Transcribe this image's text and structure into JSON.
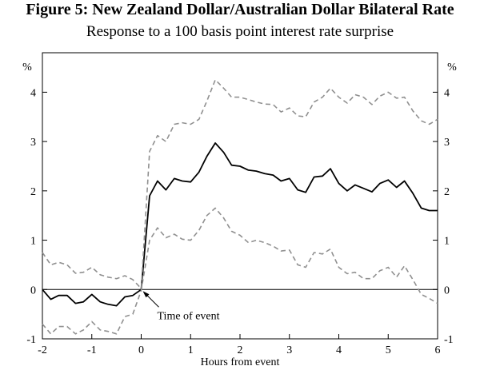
{
  "chart_data": {
    "type": "line",
    "title": "Figure 5: New Zealand Dollar/Australian Dollar Bilateral Rate",
    "subtitle": "Response to a 100 basis point interest rate surprise",
    "xlabel": "Hours from event",
    "ylabel_left": "%",
    "ylabel_right": "%",
    "xlim": [
      -2,
      6
    ],
    "ylim": [
      -1,
      4.8
    ],
    "x_ticks": [
      -2,
      -1,
      0,
      1,
      2,
      3,
      4,
      5,
      6
    ],
    "y_ticks": [
      -1,
      0,
      1,
      2,
      3,
      4
    ],
    "zero_line": true,
    "grid": false,
    "annotations": [
      {
        "text": "Time of event",
        "x": 0,
        "y": 0
      }
    ],
    "series": [
      {
        "style": "solid",
        "color": "#000000",
        "x": [
          -2,
          -1.83,
          -1.67,
          -1.5,
          -1.33,
          -1.17,
          -1,
          -0.83,
          -0.67,
          -0.5,
          -0.33,
          -0.17,
          0,
          0.17,
          0.33,
          0.5,
          0.67,
          0.83,
          1,
          1.17,
          1.33,
          1.5,
          1.67,
          1.83,
          2,
          2.17,
          2.33,
          2.5,
          2.67,
          2.83,
          3,
          3.17,
          3.33,
          3.5,
          3.67,
          3.83,
          4,
          4.17,
          4.33,
          4.5,
          4.67,
          4.83,
          5,
          5.17,
          5.33,
          5.5,
          5.67,
          5.83,
          6
        ],
        "y": [
          0,
          -0.2,
          -0.12,
          -0.12,
          -0.28,
          -0.25,
          -0.1,
          -0.25,
          -0.3,
          -0.33,
          -0.15,
          -0.12,
          0,
          1.9,
          2.2,
          2.02,
          2.25,
          2.2,
          2.18,
          2.38,
          2.7,
          2.97,
          2.78,
          2.52,
          2.5,
          2.42,
          2.4,
          2.35,
          2.32,
          2.2,
          2.25,
          2.02,
          1.97,
          2.28,
          2.3,
          2.45,
          2.15,
          2.0,
          2.12,
          2.05,
          1.98,
          2.15,
          2.22,
          2.07,
          2.2,
          1.95,
          1.65,
          1.6,
          1.6
        ]
      },
      {
        "style": "dashed",
        "color": "#909090",
        "x": [
          -2,
          -1.83,
          -1.67,
          -1.5,
          -1.33,
          -1.17,
          -1,
          -0.83,
          -0.67,
          -0.5,
          -0.33,
          -0.17,
          0,
          0.17,
          0.33,
          0.5,
          0.67,
          0.83,
          1,
          1.17,
          1.33,
          1.5,
          1.67,
          1.83,
          2,
          2.17,
          2.33,
          2.5,
          2.67,
          2.83,
          3,
          3.17,
          3.33,
          3.5,
          3.67,
          3.83,
          4,
          4.17,
          4.33,
          4.5,
          4.67,
          4.83,
          5,
          5.17,
          5.33,
          5.5,
          5.67,
          5.83,
          6
        ],
        "y": [
          0.75,
          0.5,
          0.55,
          0.5,
          0.33,
          0.35,
          0.45,
          0.3,
          0.25,
          0.22,
          0.28,
          0.2,
          0.02,
          2.8,
          3.12,
          3.0,
          3.35,
          3.38,
          3.35,
          3.45,
          3.82,
          4.25,
          4.08,
          3.9,
          3.9,
          3.85,
          3.8,
          3.76,
          3.75,
          3.6,
          3.68,
          3.52,
          3.5,
          3.8,
          3.9,
          4.08,
          3.9,
          3.78,
          3.95,
          3.9,
          3.75,
          3.92,
          4.0,
          3.88,
          3.9,
          3.62,
          3.42,
          3.35,
          3.45
        ]
      },
      {
        "style": "dashed",
        "color": "#909090",
        "x": [
          -2,
          -1.83,
          -1.67,
          -1.5,
          -1.33,
          -1.17,
          -1,
          -0.83,
          -0.67,
          -0.5,
          -0.33,
          -0.17,
          0,
          0.17,
          0.33,
          0.5,
          0.67,
          0.83,
          1,
          1.17,
          1.33,
          1.5,
          1.67,
          1.83,
          2,
          2.17,
          2.33,
          2.5,
          2.67,
          2.83,
          3,
          3.17,
          3.33,
          3.5,
          3.67,
          3.83,
          4,
          4.17,
          4.33,
          4.5,
          4.67,
          4.83,
          5,
          5.17,
          5.33,
          5.5,
          5.67,
          5.83,
          6
        ],
        "y": [
          -0.7,
          -0.9,
          -0.75,
          -0.75,
          -0.9,
          -0.82,
          -0.65,
          -0.82,
          -0.85,
          -0.9,
          -0.55,
          -0.5,
          -0.02,
          1.0,
          1.25,
          1.05,
          1.12,
          1.02,
          1.0,
          1.2,
          1.5,
          1.65,
          1.45,
          1.18,
          1.1,
          0.95,
          1.0,
          0.95,
          0.88,
          0.78,
          0.8,
          0.5,
          0.45,
          0.75,
          0.72,
          0.82,
          0.45,
          0.32,
          0.35,
          0.22,
          0.22,
          0.38,
          0.45,
          0.25,
          0.48,
          0.2,
          -0.1,
          -0.18,
          -0.28
        ]
      }
    ]
  }
}
